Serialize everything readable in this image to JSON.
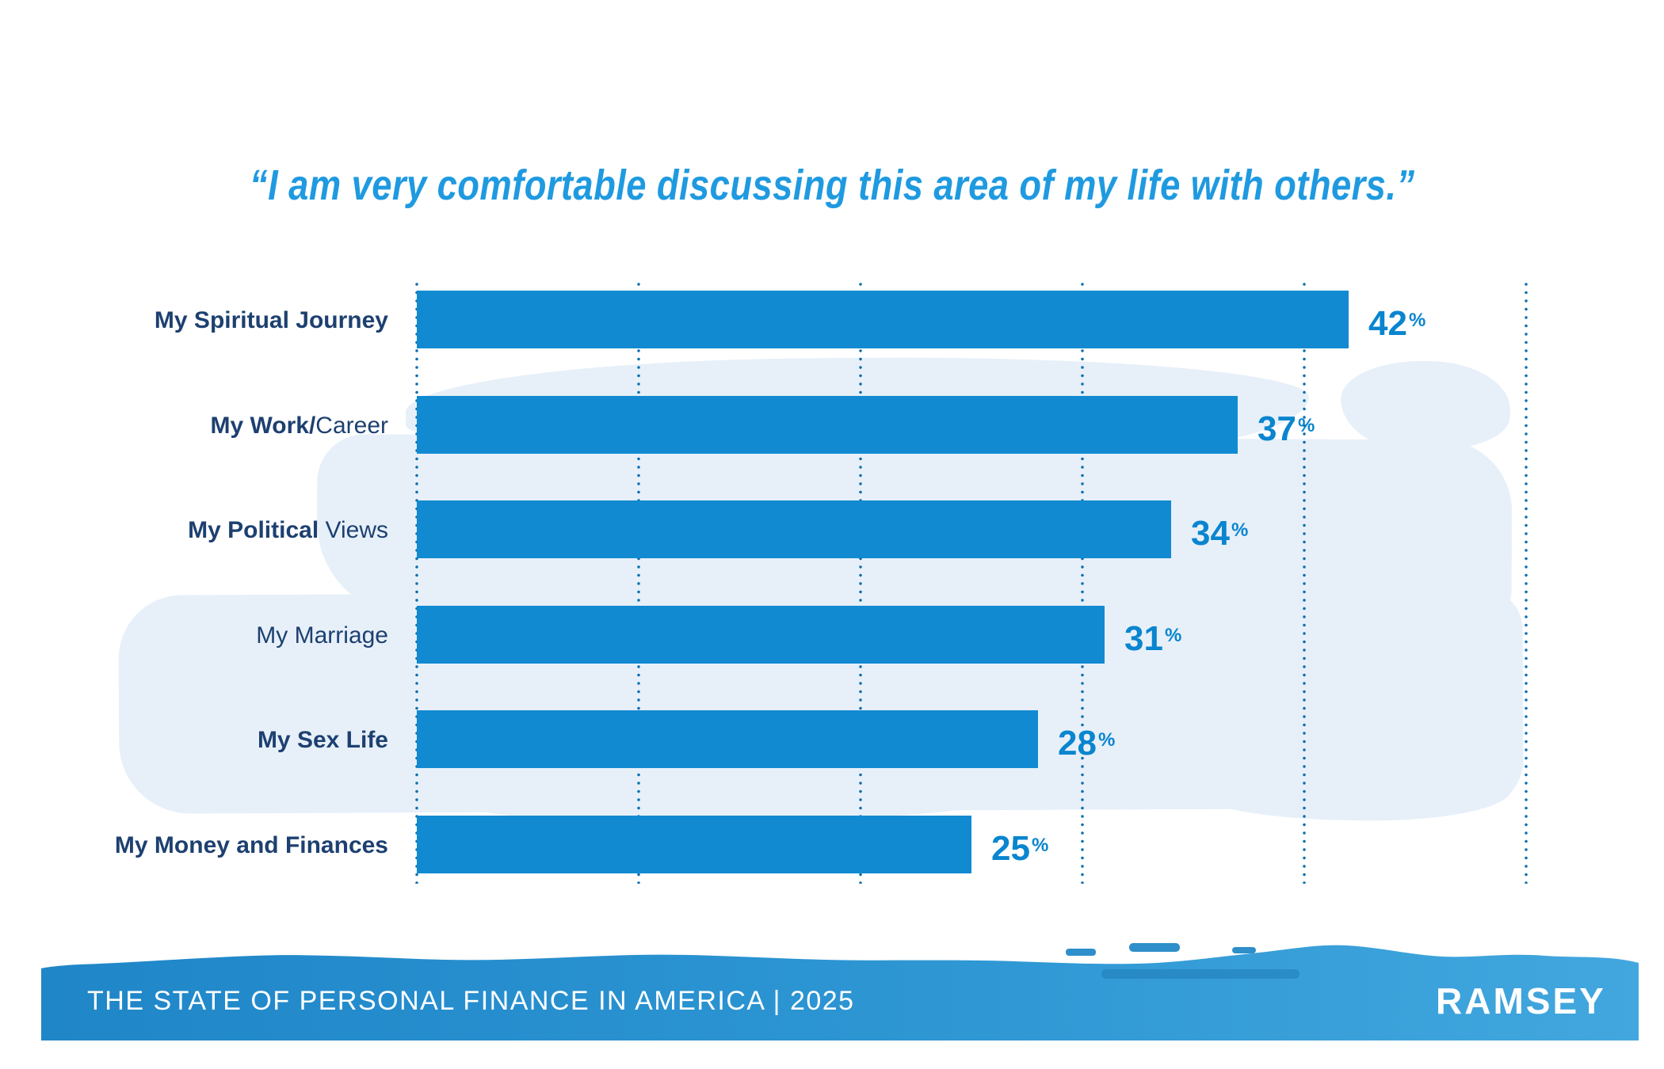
{
  "title": "“I am very comfortable discussing this area of my life with others.”",
  "footer": {
    "label": "THE STATE OF PERSONAL FINANCE IN AMERICA | 2025",
    "brand": "RAMSEY"
  },
  "colors": {
    "bar": "#128ad2",
    "value_text": "#0a85cf",
    "title_text": "#1f9ae0",
    "category_text": "#1d4070",
    "grid_dot": "#0d6fae",
    "wash": "#e7f0f9",
    "footer_gradient_left": "#1f86c8",
    "footer_gradient_right": "#42a7de",
    "footer_text": "#ffffff"
  },
  "chart_data": {
    "type": "bar",
    "orientation": "horizontal",
    "title": "“I am very comfortable discussing this area of my life with others.”",
    "categories": [
      "My Spiritual Journey",
      "My Work/Career",
      "My Political Views",
      "My Marriage",
      "My Sex Life",
      "My Money and Finances"
    ],
    "values": [
      42,
      37,
      34,
      31,
      28,
      25
    ],
    "unit": "%",
    "xlim": [
      0,
      50
    ],
    "gridlines": [
      0,
      10,
      20,
      30,
      40,
      50
    ],
    "grid_style": "dotted",
    "legend": "none",
    "value_labels": [
      "42%",
      "37%",
      "34%",
      "31%",
      "28%",
      "25%"
    ],
    "category_segments": [
      [
        {
          "text": "My Spiritual Journey",
          "bold": true
        }
      ],
      [
        {
          "text": "My Work/",
          "bold": true
        },
        {
          "text": "Career",
          "bold": false
        }
      ],
      [
        {
          "text": "My Political ",
          "bold": true
        },
        {
          "text": "Views",
          "bold": false
        }
      ],
      [
        {
          "text": "My Marriage",
          "bold": false
        }
      ],
      [
        {
          "text": "My Sex Life",
          "bold": true
        }
      ],
      [
        {
          "text": "My Money and Finances",
          "bold": true
        }
      ]
    ]
  }
}
